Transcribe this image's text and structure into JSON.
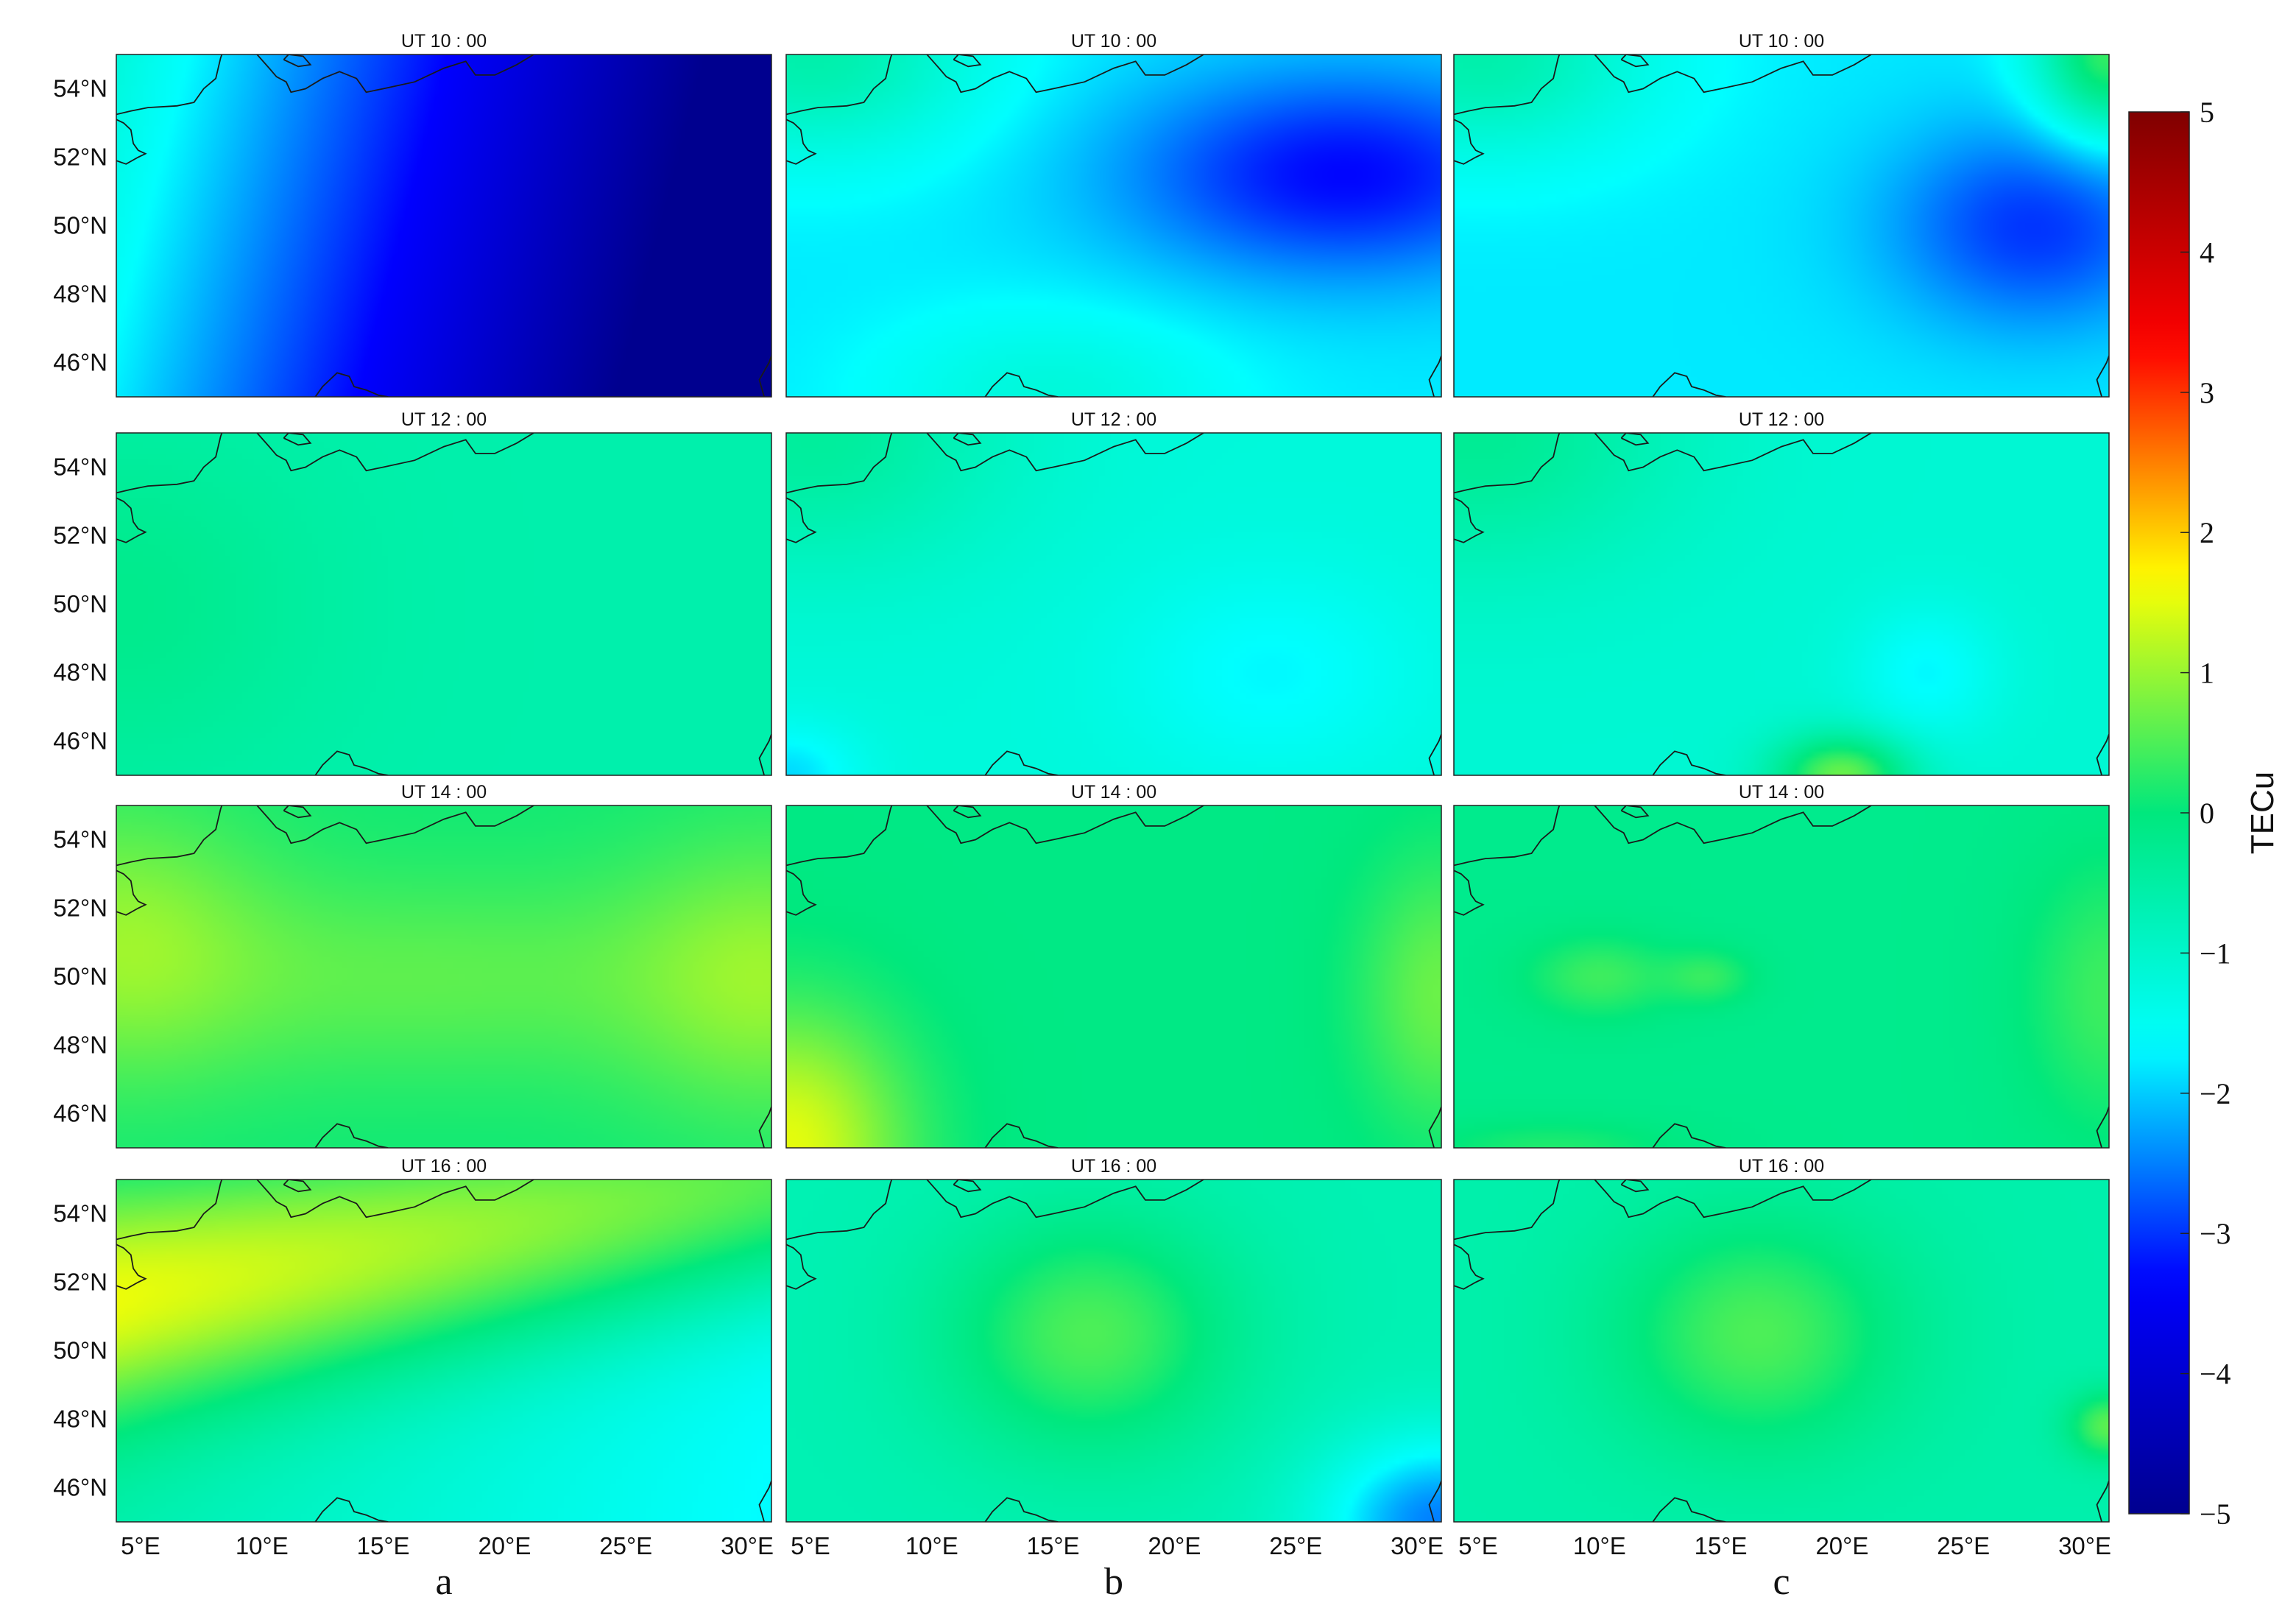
{
  "chart_data": {
    "type": "heatmap",
    "grid": false,
    "columns": [
      {
        "label": "a"
      },
      {
        "label": "b"
      },
      {
        "label": "c"
      }
    ],
    "rows": [
      {
        "title": "UT 10 : 00"
      },
      {
        "title": "UT 12 : 00"
      },
      {
        "title": "UT 14 : 00"
      },
      {
        "title": "UT 16 : 00"
      }
    ],
    "xlim": [
      4,
      31
    ],
    "ylim": [
      45,
      55
    ],
    "xticks": [
      {
        "value": 5,
        "label": "5°E"
      },
      {
        "value": 10,
        "label": "10°E"
      },
      {
        "value": 15,
        "label": "15°E"
      },
      {
        "value": 20,
        "label": "20°E"
      },
      {
        "value": 25,
        "label": "25°E"
      },
      {
        "value": 30,
        "label": "30°E"
      }
    ],
    "yticks": [
      {
        "value": 46,
        "label": "46°N"
      },
      {
        "value": 48,
        "label": "48°N"
      },
      {
        "value": 50,
        "label": "50°N"
      },
      {
        "value": 52,
        "label": "52°N"
      },
      {
        "value": 54,
        "label": "54°N"
      }
    ],
    "colorbar": {
      "label": "TECu",
      "range": [
        -5,
        5
      ],
      "ticks": [
        {
          "value": 5,
          "label": "5"
        },
        {
          "value": 4,
          "label": "4"
        },
        {
          "value": 3,
          "label": "3"
        },
        {
          "value": 2,
          "label": "2"
        },
        {
          "value": 1,
          "label": "1"
        },
        {
          "value": 0,
          "label": "0"
        },
        {
          "value": -1,
          "label": "−1"
        },
        {
          "value": -2,
          "label": "−2"
        },
        {
          "value": -3,
          "label": "−3"
        },
        {
          "value": -4,
          "label": "−4"
        },
        {
          "value": -5,
          "label": "−5"
        }
      ],
      "colormap": [
        "#00008f",
        "#0000ff",
        "#00ffff",
        "#00e87d",
        "#ffff00",
        "#ff0000",
        "#800000"
      ]
    },
    "panels": [
      {
        "row": 0,
        "col": 0,
        "base": -1.2,
        "components": [
          {
            "type": "linear",
            "lon0": 4,
            "lat0": 55,
            "v0": 0.0,
            "lon1": 31,
            "lat1": 45,
            "v1": -4.8
          }
        ]
      },
      {
        "row": 0,
        "col": 1,
        "base": -1.8,
        "components": [
          {
            "type": "blob",
            "lon": 27,
            "lat": 51.5,
            "dv": -1.5,
            "rlon": 9,
            "rlat": 3
          },
          {
            "type": "blob",
            "lon": 5,
            "lat": 55,
            "dv": 1.2,
            "rlon": 7,
            "rlat": 3
          },
          {
            "type": "blob",
            "lon": 15,
            "lat": 45,
            "dv": 0.6,
            "rlon": 7,
            "rlat": 2.5
          }
        ]
      },
      {
        "row": 0,
        "col": 2,
        "base": -1.8,
        "components": [
          {
            "type": "blob",
            "lon": 28,
            "lat": 50,
            "dv": -1.2,
            "rlon": 6,
            "rlat": 3
          },
          {
            "type": "blob",
            "lon": 31,
            "lat": 55,
            "dv": 2.2,
            "rlon": 3,
            "rlat": 2.5
          },
          {
            "type": "blob",
            "lon": 5,
            "lat": 55,
            "dv": 1.2,
            "rlon": 7,
            "rlat": 3
          }
        ]
      },
      {
        "row": 1,
        "col": 0,
        "base": -0.6,
        "components": [
          {
            "type": "blob",
            "lon": 4,
            "lat": 50,
            "dv": 0.4,
            "rlon": 8,
            "rlat": 5
          }
        ]
      },
      {
        "row": 1,
        "col": 1,
        "base": -1.2,
        "components": [
          {
            "type": "blob",
            "lon": 5,
            "lat": 55,
            "dv": 0.8,
            "rlon": 8,
            "rlat": 4
          },
          {
            "type": "blob",
            "lon": 24,
            "lat": 48,
            "dv": -0.5,
            "rlon": 6,
            "rlat": 3
          },
          {
            "type": "blob",
            "lon": 4,
            "lat": 45,
            "dv": -0.7,
            "rlon": 3,
            "rlat": 1.5
          }
        ]
      },
      {
        "row": 1,
        "col": 2,
        "base": -1.1,
        "components": [
          {
            "type": "blob",
            "lon": 5,
            "lat": 55,
            "dv": 0.8,
            "rlon": 8,
            "rlat": 4
          },
          {
            "type": "blob",
            "lon": 23.5,
            "lat": 48,
            "dv": -0.6,
            "rlon": 3,
            "rlat": 2
          },
          {
            "type": "blob",
            "lon": 20,
            "lat": 45,
            "dv": 1.8,
            "rlon": 2.8,
            "rlat": 1.2
          }
        ]
      },
      {
        "row": 2,
        "col": 0,
        "base": 0.1,
        "components": [
          {
            "type": "blob",
            "lon": 4,
            "lat": 51,
            "dv": 0.8,
            "rlon": 6,
            "rlat": 4
          },
          {
            "type": "blob",
            "lon": 31,
            "lat": 50,
            "dv": 0.8,
            "rlon": 6,
            "rlat": 4
          },
          {
            "type": "blob",
            "lon": 17,
            "lat": 50,
            "dv": 0.5,
            "rlon": 12,
            "rlat": 3
          }
        ]
      },
      {
        "row": 2,
        "col": 1,
        "base": -0.1,
        "components": [
          {
            "type": "blob",
            "lon": 4,
            "lat": 45,
            "dv": 1.6,
            "rlon": 5,
            "rlat": 4
          },
          {
            "type": "blob",
            "lon": 31,
            "lat": 49.5,
            "dv": 0.8,
            "rlon": 3.5,
            "rlat": 4
          }
        ]
      },
      {
        "row": 2,
        "col": 2,
        "base": -0.2,
        "components": [
          {
            "type": "blob",
            "lon": 10,
            "lat": 50,
            "dv": 0.6,
            "rlon": 3,
            "rlat": 1.2
          },
          {
            "type": "blob",
            "lon": 14.5,
            "lat": 50,
            "dv": 0.5,
            "rlon": 1.8,
            "rlat": 0.8
          },
          {
            "type": "blob",
            "lon": 31,
            "lat": 49.5,
            "dv": 0.6,
            "rlon": 3.5,
            "rlat": 4
          },
          {
            "type": "blob",
            "lon": 8,
            "lat": 45,
            "dv": 0.4,
            "rlon": 5,
            "rlat": 0.8
          }
        ]
      },
      {
        "row": 3,
        "col": 0,
        "base": -0.5,
        "components": [
          {
            "type": "band",
            "lon0": 4,
            "lat0": 51.5,
            "lon1": 31,
            "lat1": 55,
            "dv": 2.1,
            "width": 3.5
          },
          {
            "type": "linear",
            "lon0": 4,
            "lat0": 55,
            "v0": 0.0,
            "lon1": 31,
            "lat1": 45,
            "v1": -1.2
          }
        ]
      },
      {
        "row": 3,
        "col": 1,
        "base": -0.7,
        "components": [
          {
            "type": "blob",
            "lon": 16.5,
            "lat": 50.5,
            "dv": 1.2,
            "rlon": 6,
            "rlat": 3.5
          },
          {
            "type": "blob",
            "lon": 31,
            "lat": 45,
            "dv": -1.8,
            "rlon": 5,
            "rlat": 2.5
          }
        ]
      },
      {
        "row": 3,
        "col": 2,
        "base": -0.6,
        "components": [
          {
            "type": "blob",
            "lon": 16.5,
            "lat": 50.5,
            "dv": 1.1,
            "rlon": 6,
            "rlat": 3.5
          },
          {
            "type": "blob",
            "lon": 31,
            "lat": 47.8,
            "dv": 1.2,
            "rlon": 1.7,
            "rlat": 1
          }
        ]
      }
    ]
  }
}
